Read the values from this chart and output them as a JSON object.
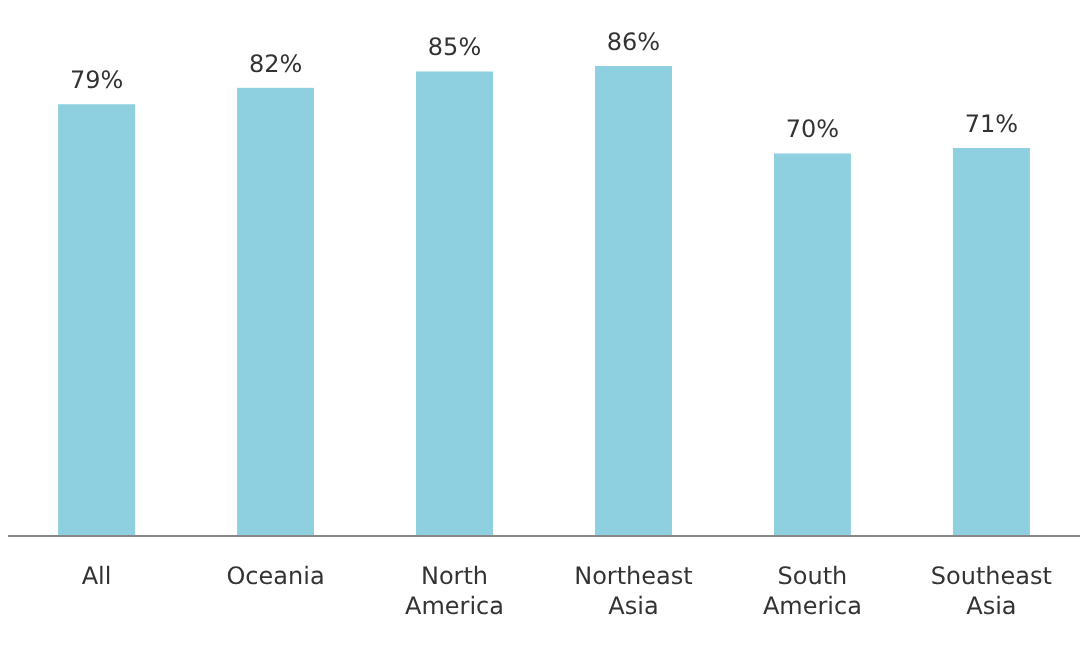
{
  "chart_data": {
    "type": "bar",
    "categories": [
      "All",
      "Oceania",
      "North America",
      "Northeast Asia",
      "South America",
      "Southeast Asia"
    ],
    "values": [
      79,
      82,
      85,
      86,
      70,
      71
    ],
    "color": "#8ecfe0",
    "value_labels": [
      "79%",
      "82%",
      "85%",
      "86%",
      "70%",
      "71%"
    ],
    "tick_labels": "x"
  }
}
